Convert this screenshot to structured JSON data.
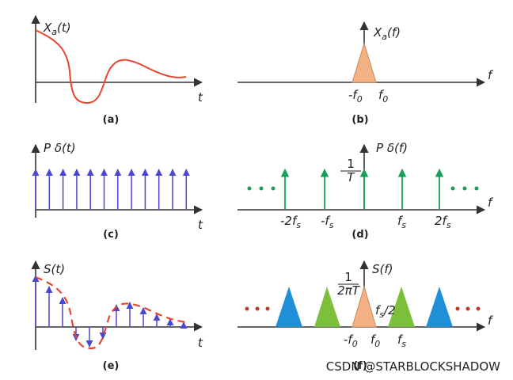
{
  "panels": [
    {
      "signal": {
        "base": "X",
        "sub": "a",
        "tail": "(t)"
      },
      "axis": "t",
      "caption": "(a)"
    },
    {
      "signal": {
        "base": "X",
        "sub": "a",
        "tail": "(f)"
      },
      "axis": "f",
      "caption": "(b)",
      "ticks": [
        {
          "base": "-f",
          "sub": "0"
        },
        {
          "base": "f",
          "sub": "0"
        }
      ]
    },
    {
      "signal": "P δ(t)",
      "axis": "t",
      "caption": "(c)"
    },
    {
      "signal": "P δ(f)",
      "axis": "f",
      "caption": "(d)",
      "fraction": {
        "num": "1",
        "den": "T"
      },
      "ticks": [
        {
          "base": "-2f",
          "sub": "s"
        },
        {
          "base": "-f",
          "sub": "s"
        },
        {
          "base": "f",
          "sub": "s"
        },
        {
          "base": "2f",
          "sub": "s"
        }
      ]
    },
    {
      "signal": "S(t)",
      "axis": "t",
      "caption": "(e)"
    },
    {
      "signal": "S(f)",
      "axis": "f",
      "caption": "(f)",
      "fraction": {
        "num": "1",
        "den": "2πT"
      },
      "note": {
        "base": "f",
        "sub": "s",
        "tail": "/2"
      },
      "ticks": [
        {
          "base": "-f",
          "sub": "0"
        },
        {
          "base": "f",
          "sub": "0"
        },
        {
          "base": "f",
          "sub": "s"
        }
      ]
    }
  ],
  "watermark": "CSDN @STARBLOCKSHADOW"
}
